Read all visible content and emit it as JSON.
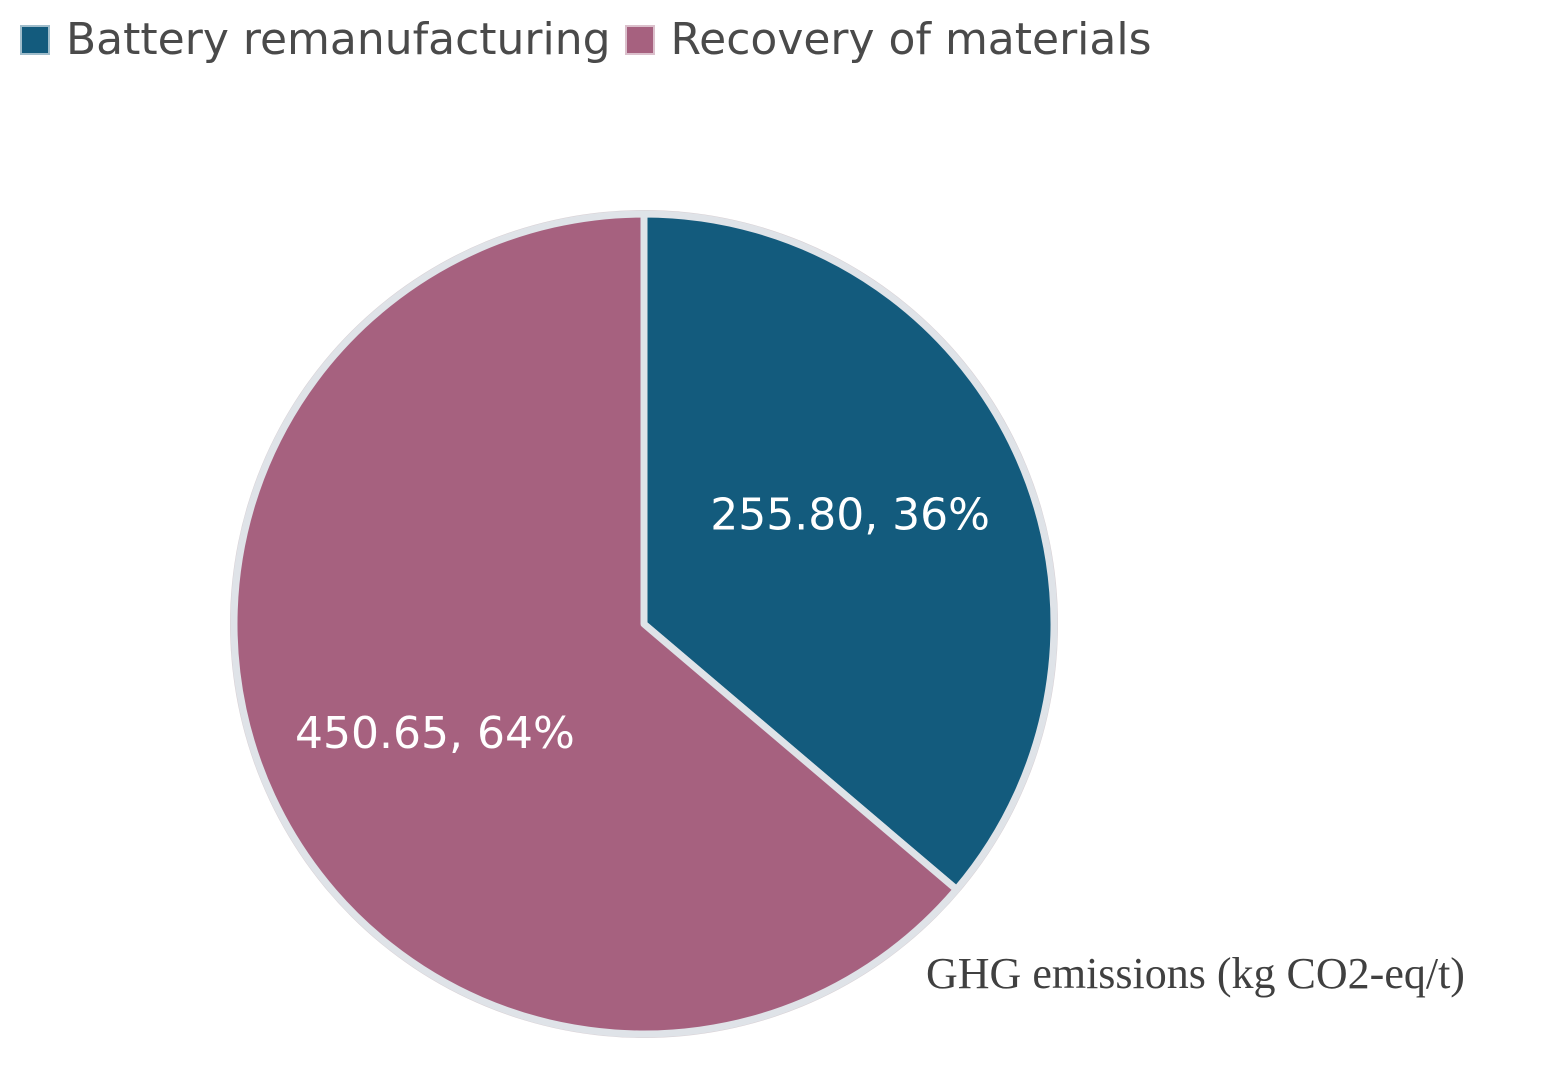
{
  "chart_data": {
    "type": "pie",
    "title": "",
    "slices": [
      {
        "name": "Battery remanufacturing",
        "value": 255.8,
        "percent": 36,
        "label": "255.80, 36%",
        "color": "#135b7d"
      },
      {
        "name": "Recovery of materials",
        "value": 450.65,
        "percent": 64,
        "label": "450.65, 64%",
        "color": "#a6617f"
      }
    ],
    "legend_position": "top-left",
    "annotation": "GHG emissions (kg CO2-eq/t)",
    "start_angle_deg": 0,
    "direction": "clockwise"
  },
  "legend": {
    "items": [
      {
        "label": "Battery remanufacturing",
        "color": "#135b7d"
      },
      {
        "label": "Recovery of materials",
        "color": "#a6617f"
      }
    ]
  }
}
